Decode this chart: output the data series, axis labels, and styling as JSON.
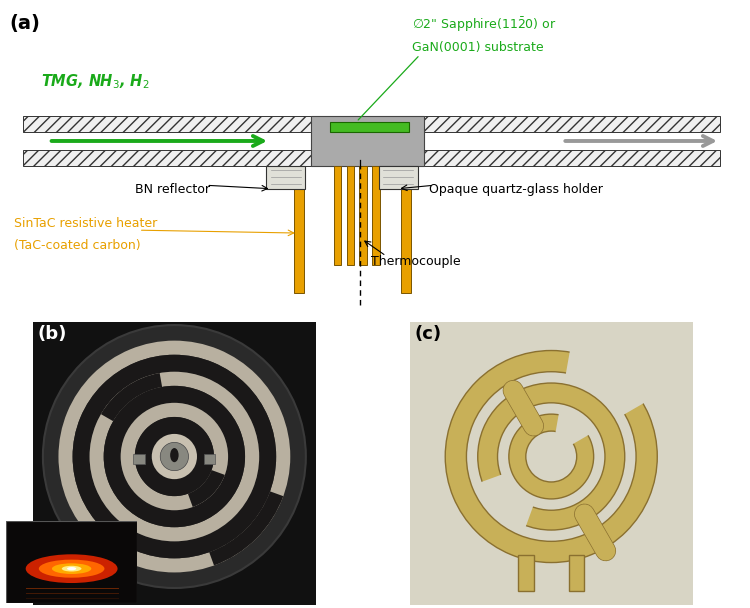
{
  "fig_width": 7.5,
  "fig_height": 6.08,
  "dpi": 100,
  "bg_color": "#ffffff",
  "label_a": "(a)",
  "label_b": "(b)",
  "label_c": "(c)",
  "label_fontsize": 13,
  "green_color": "#1aaa1a",
  "orange_color": "#e8a000",
  "text_black": "#000000",
  "annotation_fontsize": 9,
  "hatch_color": "#cccccc"
}
